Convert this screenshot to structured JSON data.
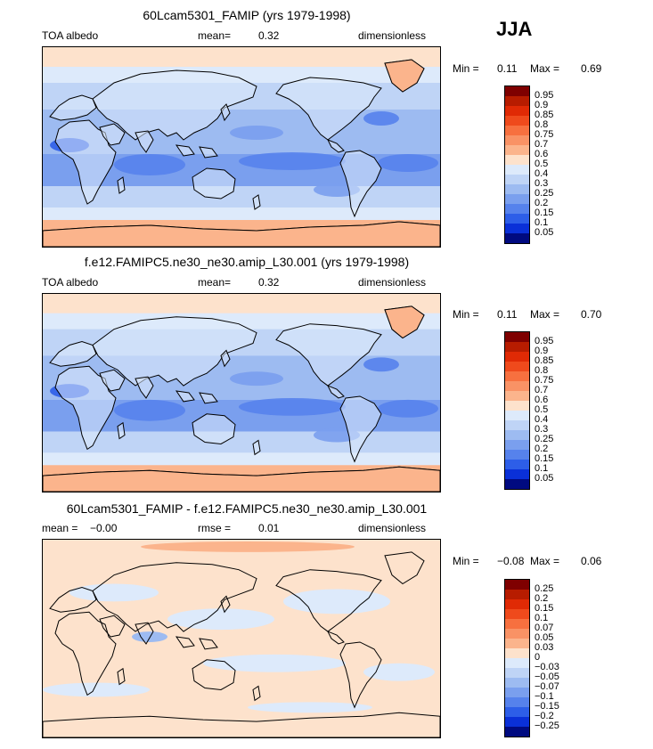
{
  "season": "JJA",
  "panels": [
    {
      "title": "60Lcam5301_FAMIP (yrs 1979-1998)",
      "left_label": "TOA albedo",
      "mid_label": "mean=",
      "mid_value": "0.32",
      "right_label": "dimensionless",
      "min_label": "Min =",
      "min_value": "0.11",
      "max_label": "Max =",
      "max_value": "0.69"
    },
    {
      "title": "f.e12.FAMIPC5.ne30_ne30.amip_L30.001 (yrs 1979-1998)",
      "left_label": "TOA albedo",
      "mid_label": "mean=",
      "mid_value": "0.32",
      "right_label": "dimensionless",
      "min_label": "Min =",
      "min_value": "0.11",
      "max_label": "Max =",
      "max_value": "0.70"
    },
    {
      "title": "60Lcam5301_FAMIP - f.e12.FAMIPC5.ne30_ne30.amip_L30.001",
      "left_label": "mean =",
      "left_value": "−0.00",
      "mid_label": "rmse =",
      "mid_value": "0.01",
      "right_label": "dimensionless",
      "min_label": "Min =",
      "min_value": "−0.08",
      "max_label": "Max =",
      "max_value": "0.06"
    }
  ],
  "colorbars": {
    "abs_levels": [
      "0.95",
      "0.9",
      "0.85",
      "0.8",
      "0.75",
      "0.7",
      "0.6",
      "0.5",
      "0.4",
      "0.3",
      "0.25",
      "0.2",
      "0.15",
      "0.1",
      "0.05"
    ],
    "abs_colors": [
      "#7f0000",
      "#b71c00",
      "#e02a05",
      "#ef4a1c",
      "#f7703f",
      "#f99265",
      "#fbb48c",
      "#fde2cc",
      "#ddeafb",
      "#bfd4f6",
      "#9dbbf1",
      "#7a9fee",
      "#5682ec",
      "#2d5ee8",
      "#0a30d8",
      "#000a80"
    ],
    "diff_levels": [
      "0.25",
      "0.2",
      "0.15",
      "0.1",
      "0.07",
      "0.05",
      "0.03",
      "0",
      "−0.03",
      "−0.05",
      "−0.07",
      "−0.1",
      "−0.15",
      "−0.2",
      "−0.25"
    ],
    "diff_colors": [
      "#7f0000",
      "#b71c00",
      "#e02a05",
      "#ef4a1c",
      "#f7703f",
      "#f99265",
      "#fbb48c",
      "#fde2cc",
      "#ddeafb",
      "#bfd4f6",
      "#9dbbf1",
      "#7a9fee",
      "#5682ec",
      "#2d5ee8",
      "#0a30d8",
      "#000a80"
    ]
  },
  "chart_data": [
    {
      "type": "heatmap",
      "title": "60Lcam5301_FAMIP (yrs 1979-1998)",
      "variable": "TOA albedo",
      "units": "dimensionless",
      "mean": 0.32,
      "min": 0.11,
      "max": 0.69,
      "x_range": [
        0,
        360
      ],
      "y_range": [
        -90,
        90
      ]
    },
    {
      "type": "heatmap",
      "title": "f.e12.FAMIPC5.ne30_ne30.amip_L30.001 (yrs 1979-1998)",
      "variable": "TOA albedo",
      "units": "dimensionless",
      "mean": 0.32,
      "min": 0.11,
      "max": 0.7,
      "x_range": [
        0,
        360
      ],
      "y_range": [
        -90,
        90
      ]
    },
    {
      "type": "heatmap",
      "title": "60Lcam5301_FAMIP - f.e12.FAMIPC5.ne30_ne30.amip_L30.001",
      "units": "dimensionless",
      "mean": -0.0,
      "rmse": 0.01,
      "min": -0.08,
      "max": 0.06,
      "x_range": [
        0,
        360
      ],
      "y_range": [
        -90,
        90
      ]
    }
  ]
}
